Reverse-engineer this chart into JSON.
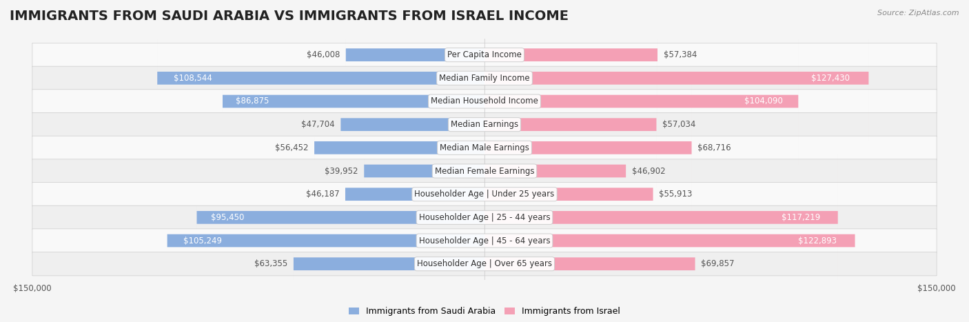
{
  "title": "IMMIGRANTS FROM SAUDI ARABIA VS IMMIGRANTS FROM ISRAEL INCOME",
  "source": "Source: ZipAtlas.com",
  "categories": [
    "Per Capita Income",
    "Median Family Income",
    "Median Household Income",
    "Median Earnings",
    "Median Male Earnings",
    "Median Female Earnings",
    "Householder Age | Under 25 years",
    "Householder Age | 25 - 44 years",
    "Householder Age | 45 - 64 years",
    "Householder Age | Over 65 years"
  ],
  "saudi_values": [
    46008,
    108544,
    86875,
    47704,
    56452,
    39952,
    46187,
    95450,
    105249,
    63355
  ],
  "israel_values": [
    57384,
    127430,
    104090,
    57034,
    68716,
    46902,
    55913,
    117219,
    122893,
    69857
  ],
  "saudi_color": "#8baede",
  "israel_color": "#f4a0b5",
  "saudi_label_color_inside": "#ffffff",
  "israel_label_color_inside": "#ffffff",
  "saudi_label_color_outside": "#555555",
  "israel_label_color_outside": "#555555",
  "saudi_inside_threshold": 70000,
  "israel_inside_threshold": 70000,
  "max_value": 150000,
  "background_color": "#f5f5f5",
  "row_bg_color": "#ffffff",
  "row_alt_bg_color": "#f0f0f0",
  "legend_saudi_color": "#8baede",
  "legend_israel_color": "#f4a0b5",
  "bar_height": 0.55,
  "title_fontsize": 14,
  "label_fontsize": 8.5,
  "category_fontsize": 8.5
}
